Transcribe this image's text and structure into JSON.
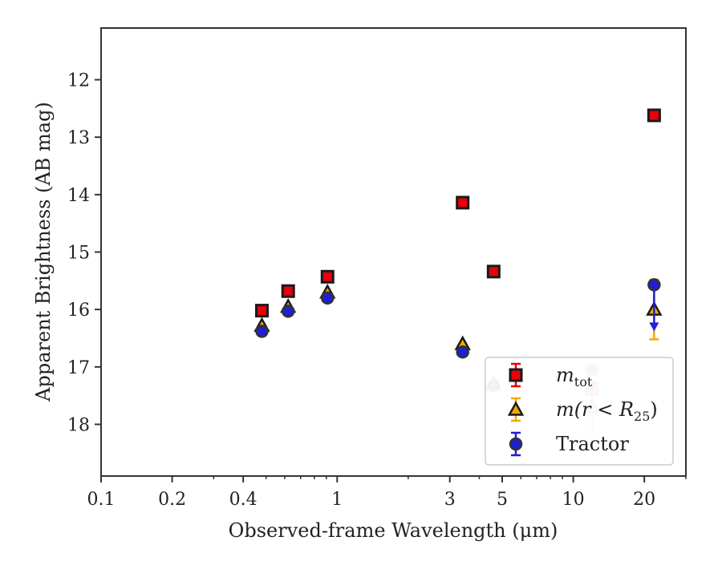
{
  "chart_data": {
    "type": "scatter",
    "title": "",
    "xlabel": "Observed-frame Wavelength (μm)",
    "ylabel": "Apparent Brightness (AB mag)",
    "xscale": "log",
    "xlim": [
      0.1,
      30
    ],
    "ylim": [
      18.9,
      11.1
    ],
    "y_inverted": true,
    "x_ticks": [
      {
        "value": 0.1,
        "label": "0.1"
      },
      {
        "value": 0.2,
        "label": "0.2"
      },
      {
        "value": 0.4,
        "label": "0.4"
      },
      {
        "value": 1,
        "label": "1"
      },
      {
        "value": 3,
        "label": "3"
      },
      {
        "value": 5,
        "label": "5"
      },
      {
        "value": 10,
        "label": "10"
      },
      {
        "value": 20,
        "label": "20"
      }
    ],
    "x_minor_ticks": [
      0.3,
      0.5,
      0.6,
      0.7,
      0.8,
      0.9,
      2,
      4,
      6,
      7,
      8,
      9,
      30
    ],
    "y_ticks": [
      {
        "value": 12,
        "label": "12"
      },
      {
        "value": 13,
        "label": "13"
      },
      {
        "value": 14,
        "label": "14"
      },
      {
        "value": 15,
        "label": "15"
      },
      {
        "value": 16,
        "label": "16"
      },
      {
        "value": 17,
        "label": "17"
      },
      {
        "value": 18,
        "label": "18"
      }
    ],
    "grid": false,
    "legend_placement": "lower-right",
    "series": [
      {
        "key": "mtot",
        "legend_main": "m",
        "legend_sub": "tot",
        "marker": "square",
        "fill": "#e8000b",
        "edge": "#1a1a1a",
        "errcolor": "#e8000b",
        "points": [
          {
            "x": 0.48,
            "y": 16.02,
            "err": 0
          },
          {
            "x": 0.62,
            "y": 15.68,
            "err": 0
          },
          {
            "x": 0.91,
            "y": 15.43,
            "err": 0
          },
          {
            "x": 3.4,
            "y": 14.14,
            "err": 0
          },
          {
            "x": 4.6,
            "y": 15.34,
            "err": 0
          },
          {
            "x": 12.0,
            "y": 17.38,
            "err": 0,
            "faded": true
          },
          {
            "x": 22.0,
            "y": 12.62,
            "err": 0
          }
        ]
      },
      {
        "key": "mr25",
        "legend_main": "m(r < R",
        "legend_sub": "25",
        "legend_tail": ")",
        "marker": "triangle",
        "fill": "#f0a800",
        "edge": "#1a1a1a",
        "errcolor": "#f0a800",
        "points": [
          {
            "x": 0.48,
            "y": 16.28,
            "err": 0
          },
          {
            "x": 0.62,
            "y": 15.95,
            "err": 0
          },
          {
            "x": 0.91,
            "y": 15.7,
            "err": 0
          },
          {
            "x": 3.4,
            "y": 16.6,
            "err": 0
          },
          {
            "x": 4.6,
            "y": 17.28,
            "err": 0,
            "faded": true
          },
          {
            "x": 12.0,
            "y": 17.7,
            "err": 0.45,
            "faded": true
          },
          {
            "x": 22.0,
            "y": 16.0,
            "err": 0.52
          }
        ]
      },
      {
        "key": "tractor",
        "legend_main": "Tractor",
        "marker": "circle",
        "fill": "#1f1fd6",
        "edge": "#333333",
        "errcolor": "#1f1fd6",
        "points": [
          {
            "x": 0.48,
            "y": 16.38,
            "err": 0
          },
          {
            "x": 0.62,
            "y": 16.03,
            "err": 0
          },
          {
            "x": 0.91,
            "y": 15.8,
            "err": 0
          },
          {
            "x": 3.4,
            "y": 16.74,
            "err": 0
          },
          {
            "x": 4.6,
            "y": 17.33,
            "err": 0,
            "faded": true
          },
          {
            "x": 12.0,
            "y": 17.05,
            "err": 0,
            "faded": true
          },
          {
            "x": 22.0,
            "y": 15.57,
            "err": 0,
            "upper_limit": true
          }
        ]
      }
    ]
  }
}
